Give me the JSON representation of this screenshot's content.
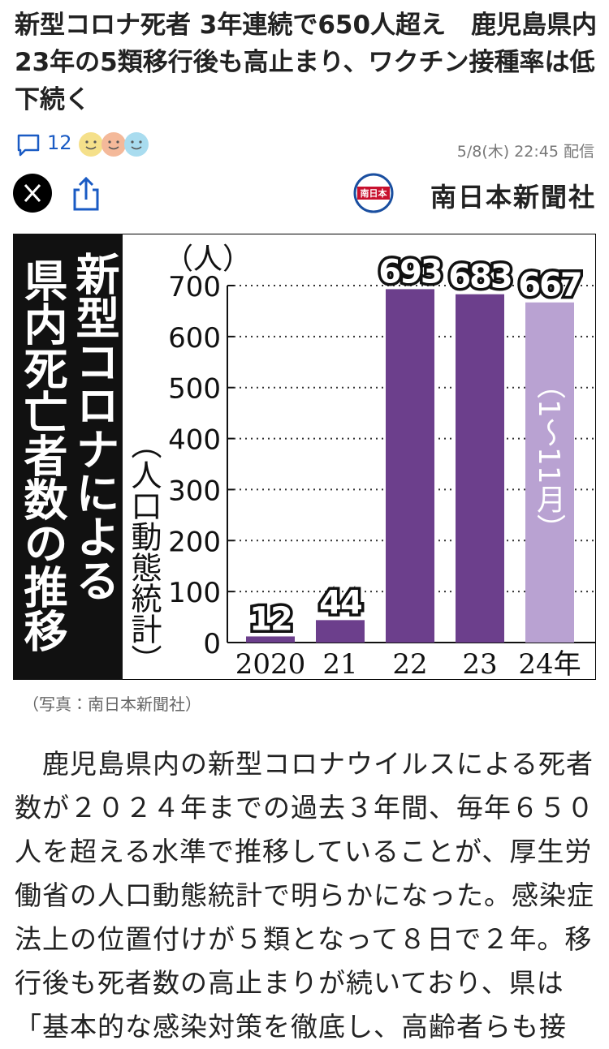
{
  "header": {
    "title": "新型コロナ死者 3年連続で650人超え　鹿児島県内　23年の5類移行後も高止まり、ワクチン接種率は低下続く",
    "comment_count": 12,
    "published": "5/8(木) 22:45 配信",
    "source": "南日本新聞社",
    "logo_badge": "南日本"
  },
  "chart_data": {
    "type": "bar",
    "title_lines": [
      "新型コロナによる",
      "県内死亡者数の推移"
    ],
    "subtitle": "（人口動態統計）",
    "y_unit": "（人）",
    "categories": [
      "2020",
      "21",
      "22",
      "23",
      "24年"
    ],
    "values": [
      12,
      44,
      693,
      683,
      667
    ],
    "colors": [
      "#6c3f8c",
      "#6c3f8c",
      "#6c3f8c",
      "#6c3f8c",
      "#b9a2d2"
    ],
    "annotation": "（1〜11月）",
    "ylim": [
      0,
      700
    ],
    "yticks": [
      0,
      100,
      200,
      300,
      400,
      500,
      600,
      700
    ],
    "grid": true
  },
  "caption": "（写真：南日本新聞社）",
  "body": "　鹿児島県内の新型コロナウイルスによる死者数が２０２４年までの過去３年間、毎年６５０人を超える水準で推移していることが、厚生労働省の人口動態統計で明らかになった。感染症法上の位置付けが５類となって８日で２年。移行後も死者数の高止まりが続いており、県は「基本的な感染対策を徹底し、高齢者らも接"
}
